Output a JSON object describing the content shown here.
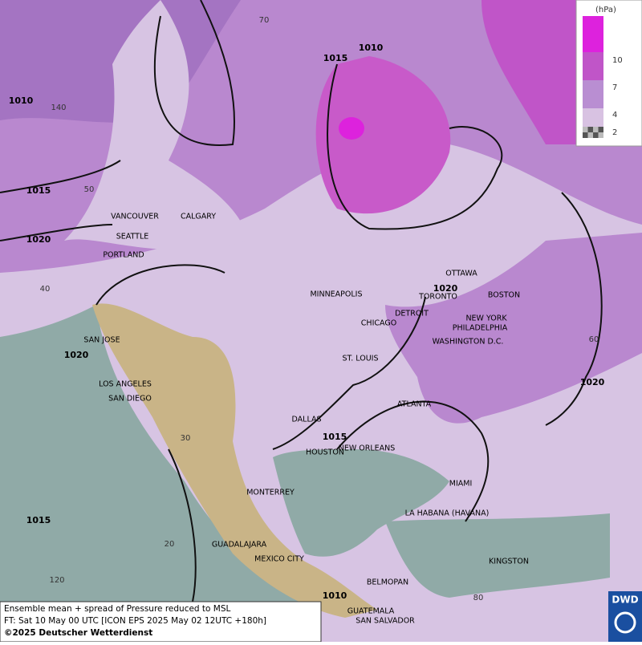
{
  "legend": {
    "unit": "(hPa)",
    "levels": [
      10,
      7,
      4,
      2
    ],
    "colors": [
      "#dd22dd",
      "#c055c8",
      "#b98ed2",
      "#d8c2e2"
    ]
  },
  "isobars": [
    1015,
    1010,
    1010,
    1015,
    1020,
    1020,
    1020,
    1015,
    1020,
    1015,
    1010
  ],
  "graticule": [
    70,
    140,
    50,
    40,
    60,
    30,
    20,
    120,
    80
  ],
  "cities": [
    "VANCOUVER",
    "CALGARY",
    "SEATTLE",
    "PORTLAND",
    "OTTAWA",
    "MINNEAPOLIS",
    "TORONTO",
    "BOSTON",
    "DETROIT",
    "CHICAGO",
    "NEW YORK",
    "PHILADELPHIA",
    "WASHINGTON D.C.",
    "SAN JOSE",
    "ST. LOUIS",
    "LOS ANGELES",
    "SAN DIEGO",
    "ATLANTA",
    "DALLAS",
    "NEW ORLEANS",
    "HOUSTON",
    "MIAMI",
    "MONTERREY",
    "LA HABANA (HAVANA)",
    "GUADALAJARA",
    "MEXICO CITY",
    "KINGSTON",
    "BELMOPAN",
    "GUATEMALA",
    "SAN SALVADOR"
  ],
  "footer": [
    "Ensemble mean + spread of Pressure reduced to MSL",
    "FT: Sat 10 May 00 UTC [ICON EPS 2025 May 02 12UTC +180h]",
    "©2025 Deutscher Wetterdienst"
  ],
  "logo": "DWD"
}
